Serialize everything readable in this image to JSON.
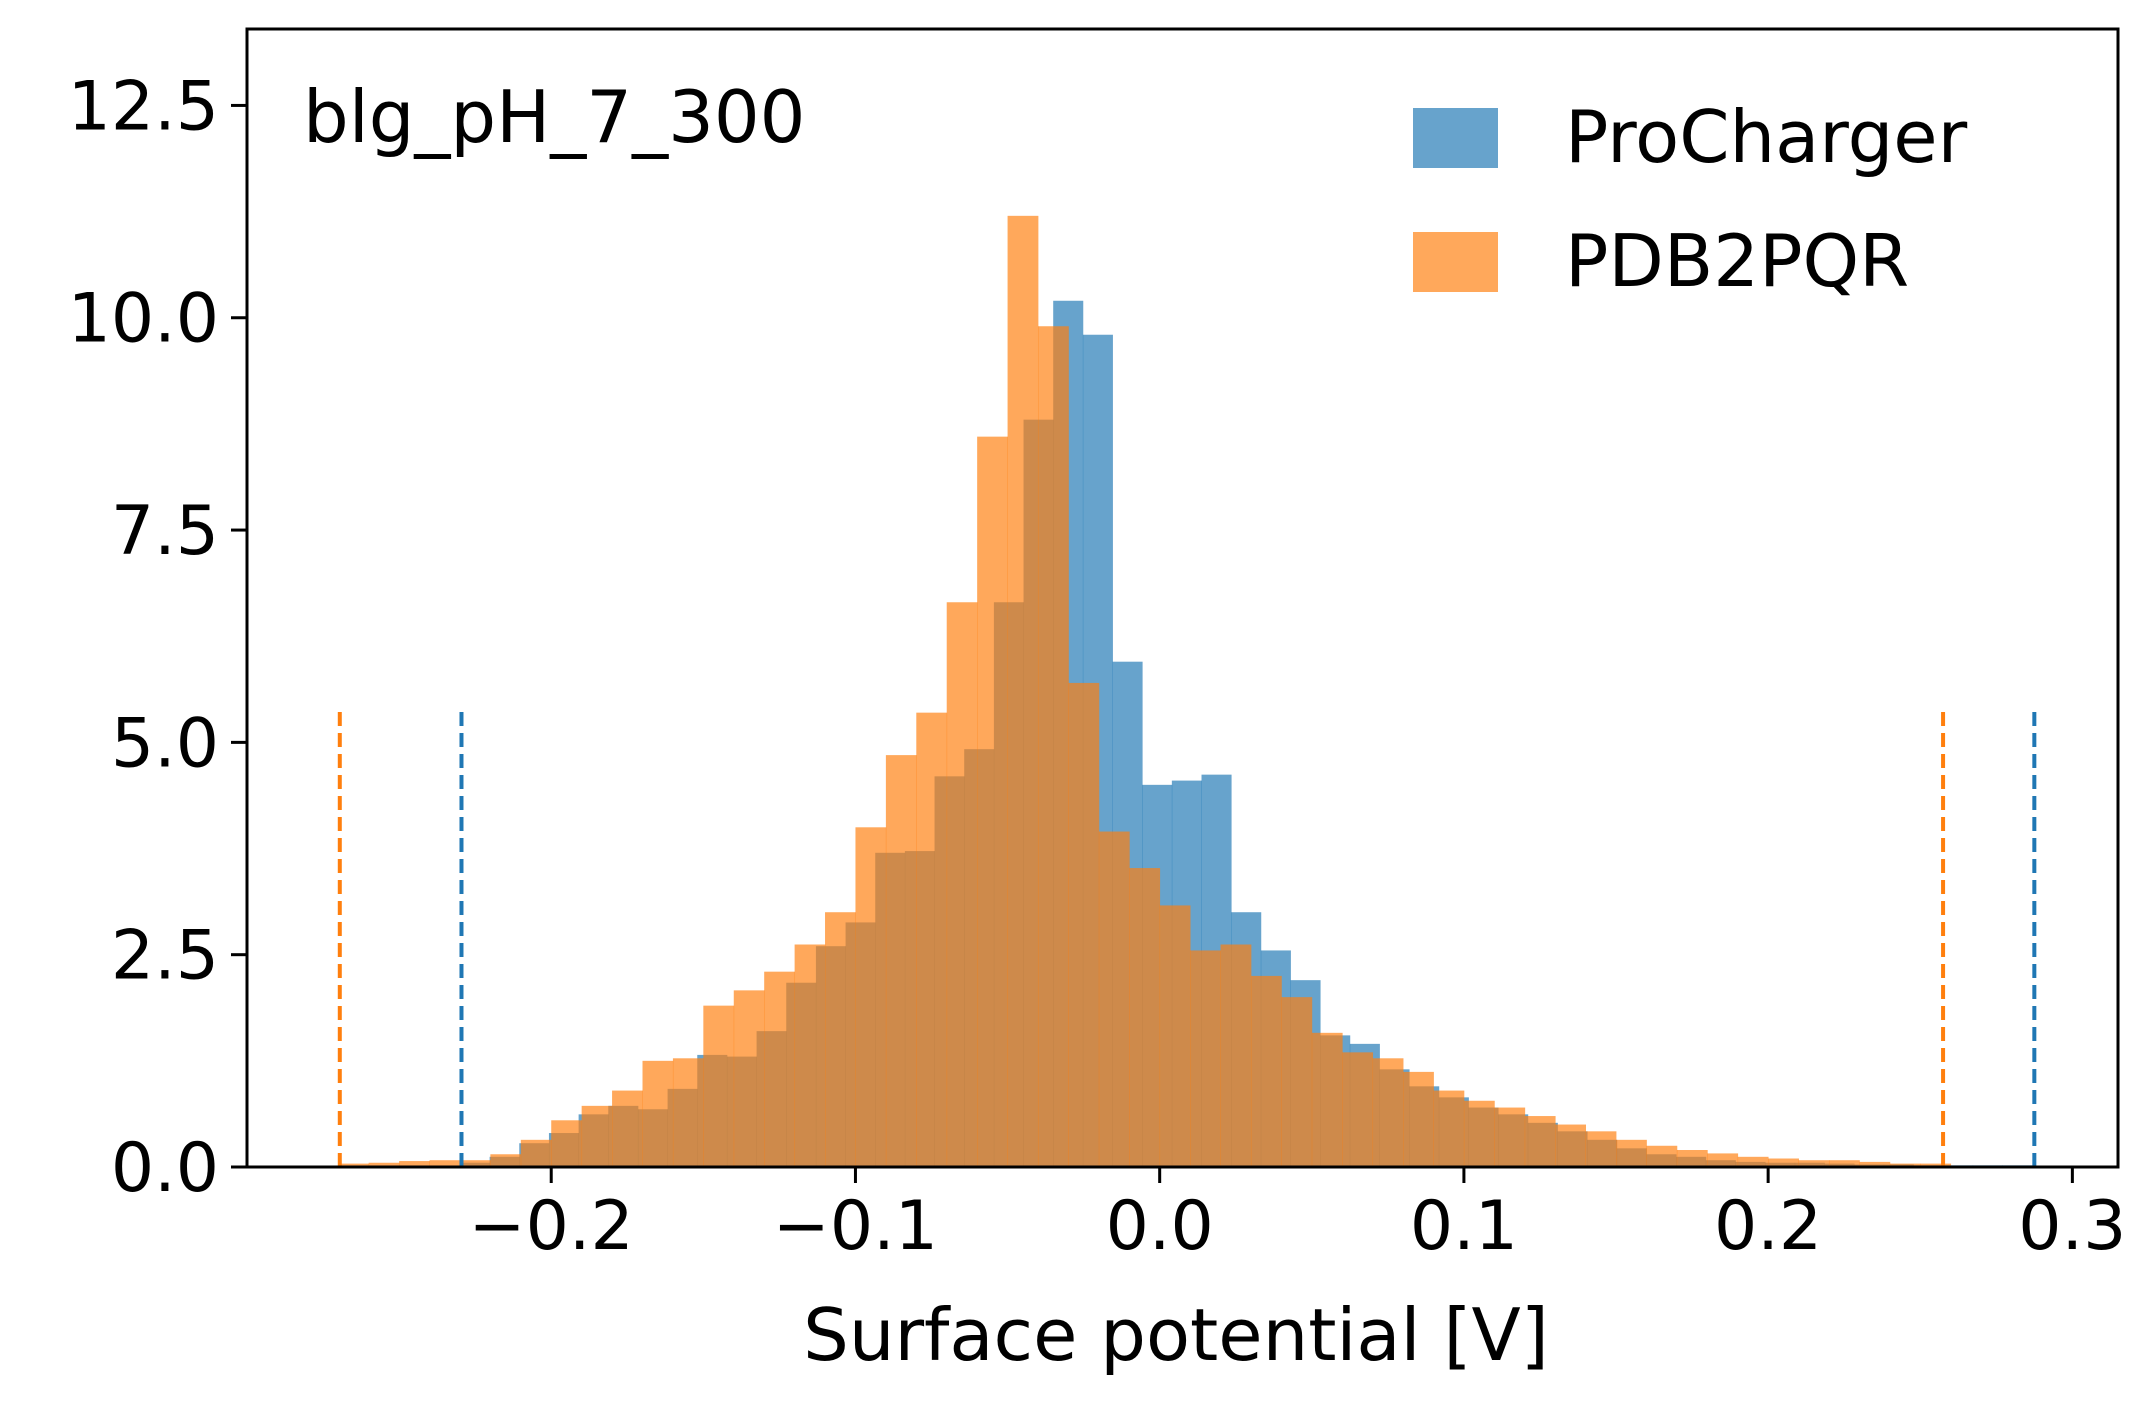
{
  "chart_data": {
    "type": "histogram",
    "annotation": "blg_pH_7_300",
    "xlabel": "Surface potential [V]",
    "ylabel": "",
    "xlim": [
      -0.3,
      0.315
    ],
    "ylim": [
      0,
      13.4
    ],
    "xticks": [
      -0.2,
      -0.1,
      0.0,
      0.1,
      0.2,
      0.3
    ],
    "xtick_labels": [
      "−0.2",
      "−0.1",
      "0.0",
      "0.1",
      "0.2",
      "0.3"
    ],
    "yticks": [
      0,
      2.5,
      5,
      7.5,
      10,
      12.5
    ],
    "ytick_labels": [
      "0.0",
      "2.5",
      "5.0",
      "7.5",
      "10.0",
      "12.5"
    ],
    "grid": false,
    "legend_position": "top-right",
    "series": [
      {
        "name": "ProCharger",
        "color": "#1f77b4",
        "opacity": 0.68,
        "bin_edges": [
          -0.23,
          -0.22025,
          -0.2105,
          -0.20075,
          -0.191,
          -0.18125,
          -0.1715,
          -0.16175,
          -0.152,
          -0.14225,
          -0.1325,
          -0.12275,
          -0.113,
          -0.10325,
          -0.0935,
          -0.08375,
          -0.074,
          -0.06425,
          -0.0545,
          -0.04475,
          -0.035,
          -0.02525,
          -0.0155,
          -0.00575,
          0.004,
          0.01375,
          0.0235,
          0.03325,
          0.043,
          0.05275,
          0.0625,
          0.07225,
          0.082,
          0.09175,
          0.1015,
          0.11125,
          0.121,
          0.13075,
          0.1405,
          0.15025,
          0.16,
          0.16975,
          0.1795,
          0.18925,
          0.199,
          0.20875,
          0.2185,
          0.22825,
          0.238,
          0.24775,
          0.2575,
          0.26725,
          0.277,
          0.28675
        ],
        "values": [
          0.05,
          0.12,
          0.28,
          0.4,
          0.62,
          0.72,
          0.68,
          0.92,
          1.32,
          1.3,
          1.6,
          2.17,
          2.6,
          2.88,
          3.7,
          3.72,
          4.6,
          4.92,
          6.65,
          8.8,
          10.2,
          9.8,
          5.95,
          4.5,
          4.55,
          4.62,
          3.0,
          2.55,
          2.2,
          1.55,
          1.45,
          1.15,
          0.95,
          0.82,
          0.7,
          0.62,
          0.52,
          0.42,
          0.32,
          0.22,
          0.15,
          0.12,
          0.08,
          0.06,
          0.05,
          0.05,
          0.04,
          0.03,
          0.03,
          0.02,
          0.02,
          0.02,
          0.02
        ]
      },
      {
        "name": "PDB2PQR",
        "color": "#ff7f0e",
        "opacity": 0.68,
        "bin_edges": [
          -0.27,
          -0.26,
          -0.25,
          -0.24,
          -0.23,
          -0.22,
          -0.21,
          -0.2,
          -0.19,
          -0.18,
          -0.17,
          -0.16,
          -0.15,
          -0.14,
          -0.13,
          -0.12,
          -0.11,
          -0.1,
          -0.09,
          -0.08,
          -0.07,
          -0.06,
          -0.05,
          -0.04,
          -0.03,
          -0.02,
          -0.01,
          0.0,
          0.01,
          0.02,
          0.03,
          0.04,
          0.05,
          0.06,
          0.07,
          0.08,
          0.09,
          0.1,
          0.11,
          0.12,
          0.13,
          0.14,
          0.15,
          0.16,
          0.17,
          0.18,
          0.19,
          0.2,
          0.21,
          0.22,
          0.23,
          0.24,
          0.25,
          0.26
        ],
        "values": [
          0.04,
          0.05,
          0.07,
          0.08,
          0.08,
          0.15,
          0.32,
          0.55,
          0.72,
          0.9,
          1.25,
          1.28,
          1.9,
          2.08,
          2.3,
          2.62,
          3.0,
          4.0,
          4.85,
          5.35,
          6.65,
          8.6,
          11.2,
          9.9,
          5.7,
          3.95,
          3.52,
          3.08,
          2.55,
          2.62,
          2.25,
          2.0,
          1.58,
          1.35,
          1.28,
          1.12,
          0.9,
          0.78,
          0.7,
          0.6,
          0.5,
          0.42,
          0.32,
          0.25,
          0.2,
          0.16,
          0.12,
          0.1,
          0.08,
          0.08,
          0.06,
          0.04,
          0.04
        ]
      }
    ],
    "vlines": [
      {
        "series": "PDB2PQR",
        "x": -0.2695,
        "ymax": 5.4,
        "color": "#ff7f0e",
        "style": "dashed"
      },
      {
        "series": "ProCharger",
        "x": -0.2295,
        "ymax": 5.4,
        "color": "#1f77b4",
        "style": "dashed"
      },
      {
        "series": "PDB2PQR",
        "x": 0.2575,
        "ymax": 5.4,
        "color": "#ff7f0e",
        "style": "dashed"
      },
      {
        "series": "ProCharger",
        "x": 0.2875,
        "ymax": 5.4,
        "color": "#1f77b4",
        "style": "dashed"
      }
    ]
  }
}
